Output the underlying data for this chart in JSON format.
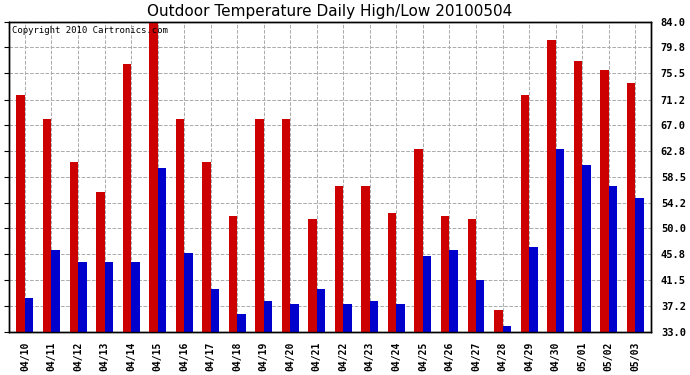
{
  "title": "Outdoor Temperature Daily High/Low 20100504",
  "copyright": "Copyright 2010 Cartronics.com",
  "dates": [
    "04/10",
    "04/11",
    "04/12",
    "04/13",
    "04/14",
    "04/15",
    "04/16",
    "04/17",
    "04/18",
    "04/19",
    "04/20",
    "04/21",
    "04/22",
    "04/23",
    "04/24",
    "04/25",
    "04/26",
    "04/27",
    "04/28",
    "04/29",
    "04/30",
    "05/01",
    "05/02",
    "05/03"
  ],
  "highs": [
    72.0,
    68.0,
    61.0,
    56.0,
    77.0,
    84.0,
    68.0,
    61.0,
    52.0,
    68.0,
    68.0,
    51.5,
    57.0,
    57.0,
    52.5,
    63.0,
    52.0,
    51.5,
    36.5,
    72.0,
    81.0,
    77.5,
    76.0,
    74.0
  ],
  "lows": [
    38.5,
    46.5,
    44.5,
    44.5,
    44.5,
    60.0,
    46.0,
    40.0,
    36.0,
    38.0,
    37.5,
    40.0,
    37.5,
    38.0,
    37.5,
    45.5,
    46.5,
    41.5,
    34.0,
    47.0,
    63.0,
    60.5,
    57.0,
    55.0
  ],
  "high_color": "#cc0000",
  "low_color": "#0000cc",
  "background_color": "#ffffff",
  "grid_color": "#aaaaaa",
  "ymin": 33.0,
  "ymax": 84.0,
  "yticks": [
    33.0,
    37.2,
    41.5,
    45.8,
    50.0,
    54.2,
    58.5,
    62.8,
    67.0,
    71.2,
    75.5,
    79.8,
    84.0
  ],
  "ytick_labels": [
    "33.0",
    "37.2",
    "41.5",
    "45.8",
    "50.0",
    "54.2",
    "58.5",
    "62.8",
    "67.0",
    "71.2",
    "75.5",
    "79.8",
    "84.0"
  ],
  "title_fontsize": 11,
  "copyright_fontsize": 6.5,
  "bar_width": 0.32
}
